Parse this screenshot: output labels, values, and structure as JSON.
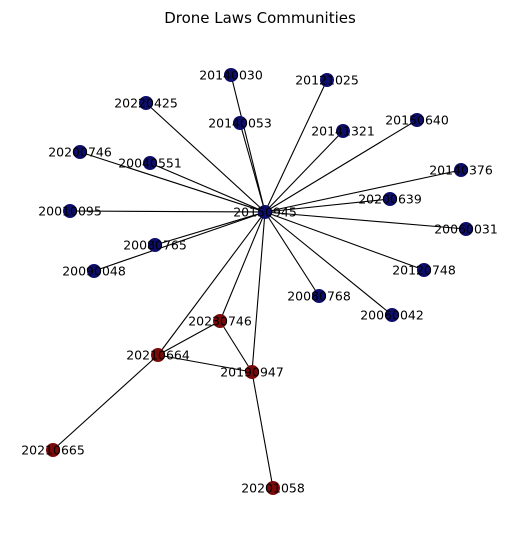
{
  "title": "Drone Laws Communities",
  "colors": {
    "community_blue": "#0d0d6b",
    "community_red": "#7a0a0a",
    "edge": "#000000"
  },
  "nodes": [
    {
      "id": "hub",
      "label": "20150945",
      "community": "blue"
    },
    {
      "id": "n1",
      "label": "20140030",
      "community": "blue"
    },
    {
      "id": "n2",
      "label": "20121025",
      "community": "blue"
    },
    {
      "id": "n3",
      "label": "20220425",
      "community": "blue"
    },
    {
      "id": "n4",
      "label": "20140053",
      "community": "blue"
    },
    {
      "id": "n5",
      "label": "20141321",
      "community": "blue"
    },
    {
      "id": "n6",
      "label": "20150640",
      "community": "blue"
    },
    {
      "id": "n7",
      "label": "20200746",
      "community": "blue"
    },
    {
      "id": "n8",
      "label": "20040551",
      "community": "blue"
    },
    {
      "id": "n9",
      "label": "20140376",
      "community": "blue"
    },
    {
      "id": "n10",
      "label": "20200639",
      "community": "blue"
    },
    {
      "id": "n11",
      "label": "20010095",
      "community": "blue"
    },
    {
      "id": "n12",
      "label": "20060031",
      "community": "blue"
    },
    {
      "id": "n13",
      "label": "20080765",
      "community": "blue"
    },
    {
      "id": "n14",
      "label": "20090048",
      "community": "blue"
    },
    {
      "id": "n15",
      "label": "20120748",
      "community": "blue"
    },
    {
      "id": "n16",
      "label": "20080768",
      "community": "blue"
    },
    {
      "id": "n17",
      "label": "20060042",
      "community": "blue"
    },
    {
      "id": "r1",
      "label": "20230746",
      "community": "red"
    },
    {
      "id": "r2",
      "label": "20210664",
      "community": "red"
    },
    {
      "id": "r3",
      "label": "20190947",
      "community": "red"
    },
    {
      "id": "r4",
      "label": "20210665",
      "community": "red"
    },
    {
      "id": "r5",
      "label": "20201058",
      "community": "red"
    }
  ],
  "edges": [
    [
      "hub",
      "n1"
    ],
    [
      "hub",
      "n2"
    ],
    [
      "hub",
      "n3"
    ],
    [
      "hub",
      "n4"
    ],
    [
      "hub",
      "n5"
    ],
    [
      "hub",
      "n6"
    ],
    [
      "hub",
      "n7"
    ],
    [
      "hub",
      "n8"
    ],
    [
      "hub",
      "n9"
    ],
    [
      "hub",
      "n10"
    ],
    [
      "hub",
      "n11"
    ],
    [
      "hub",
      "n12"
    ],
    [
      "hub",
      "n13"
    ],
    [
      "hub",
      "n14"
    ],
    [
      "hub",
      "n15"
    ],
    [
      "hub",
      "n16"
    ],
    [
      "hub",
      "n17"
    ],
    [
      "hub",
      "r1"
    ],
    [
      "hub",
      "r2"
    ],
    [
      "hub",
      "r3"
    ],
    [
      "r1",
      "r2"
    ],
    [
      "r1",
      "r3"
    ],
    [
      "r2",
      "r3"
    ],
    [
      "r2",
      "r4"
    ],
    [
      "r3",
      "r5"
    ]
  ]
}
